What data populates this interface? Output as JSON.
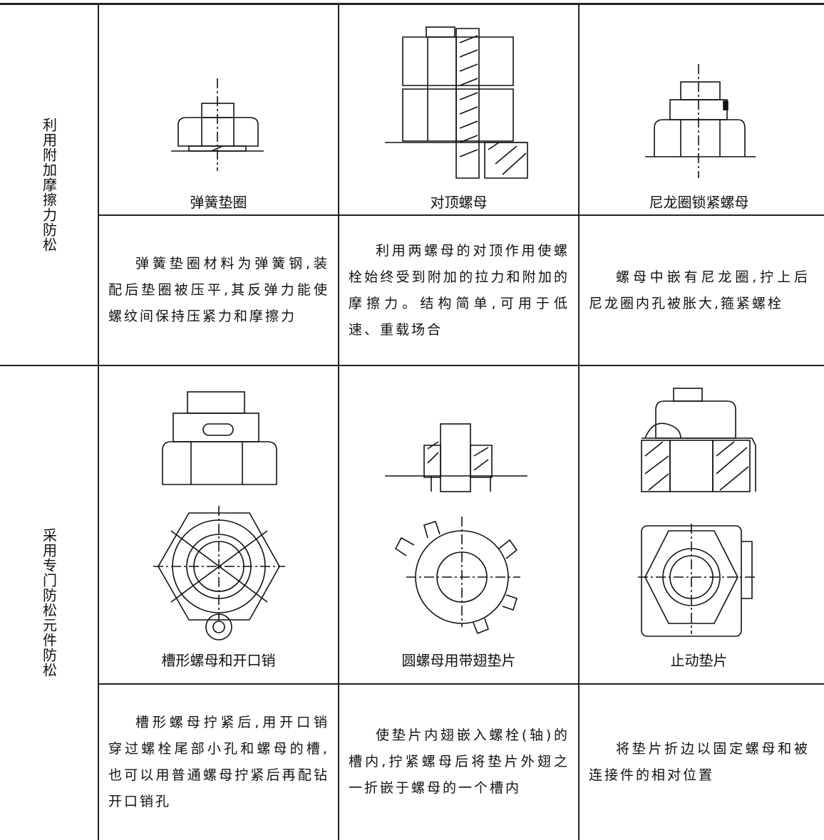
{
  "row_groups": [
    {
      "label": "利用附加摩擦力防松",
      "items": [
        {
          "caption": "弹簧垫圈",
          "description": "弹簧垫圈材料为弹簧钢,装配后垫圈被压平,其反弹力能使螺纹间保持压紧力和摩擦力"
        },
        {
          "caption": "对顶螺母",
          "description": "利用两螺母的对顶作用使螺栓始终受到附加的拉力和附加的摩擦力。结构简单,可用于低速、重载场合"
        },
        {
          "caption": "尼龙圈锁紧螺母",
          "description": "螺母中嵌有尼龙圈,拧上后尼龙圈内孔被胀大,箍紧螺栓"
        }
      ]
    },
    {
      "label": "采用专门防松元件防松",
      "items": [
        {
          "caption": "槽形螺母和开口销",
          "description": "槽形螺母拧紧后,用开口销穿过螺栓尾部小孔和螺母的槽,也可以用普通螺母拧紧后再配钻开口销孔"
        },
        {
          "caption": "圆螺母用带翅垫片",
          "description": "使垫片内翅嵌入螺栓(轴)的槽内,拧紧螺母后将垫片外翅之一折嵌于螺母的一个槽内"
        },
        {
          "caption": "止动垫片",
          "description": "将垫片折边以固定螺母和被连接件的相对位置"
        }
      ]
    }
  ]
}
